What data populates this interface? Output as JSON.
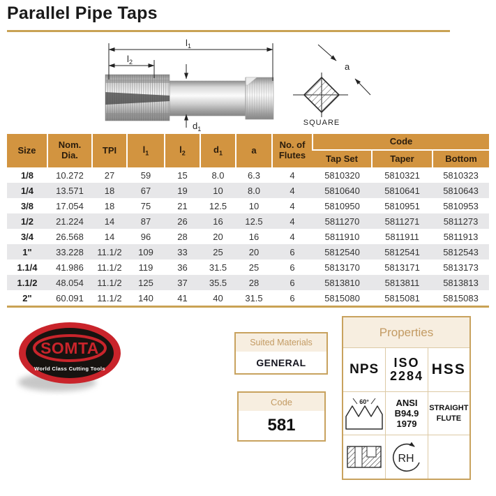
{
  "title": "Parallel Pipe Taps",
  "diagram": {
    "l1_base": "l",
    "l1_sub": "1",
    "l2_base": "l",
    "l2_sub": "2",
    "d1_base": "d",
    "d1_sub": "1",
    "a_label": "a",
    "square_label": "SQUARE"
  },
  "table": {
    "header": {
      "size": "Size",
      "nom_dia_line1": "Nom.",
      "nom_dia_line2": "Dia.",
      "tpi": "TPI",
      "l1_base": "l",
      "l1_sub": "1",
      "l2_base": "l",
      "l2_sub": "2",
      "d1_base": "d",
      "d1_sub": "1",
      "a": "a",
      "flutes_line1": "No. of",
      "flutes_line2": "Flutes",
      "code": "Code",
      "tap_set": "Tap Set",
      "taper": "Taper",
      "bottom": "Bottom"
    },
    "rows": [
      [
        "1/8",
        "10.272",
        "27",
        "59",
        "15",
        "8.0",
        "6.3",
        "4",
        "5810320",
        "5810321",
        "5810323"
      ],
      [
        "1/4",
        "13.571",
        "18",
        "67",
        "19",
        "10",
        "8.0",
        "4",
        "5810640",
        "5810641",
        "5810643"
      ],
      [
        "3/8",
        "17.054",
        "18",
        "75",
        "21",
        "12.5",
        "10",
        "4",
        "5810950",
        "5810951",
        "5810953"
      ],
      [
        "1/2",
        "21.224",
        "14",
        "87",
        "26",
        "16",
        "12.5",
        "4",
        "5811270",
        "5811271",
        "5811273"
      ],
      [
        "3/4",
        "26.568",
        "14",
        "96",
        "28",
        "20",
        "16",
        "4",
        "5811910",
        "5811911",
        "5811913"
      ],
      [
        "1\"",
        "33.228",
        "11.1/2",
        "109",
        "33",
        "25",
        "20",
        "6",
        "5812540",
        "5812541",
        "5812543"
      ],
      [
        "1.1/4",
        "41.986",
        "11.1/2",
        "119",
        "36",
        "31.5",
        "25",
        "6",
        "5813170",
        "5813171",
        "5813173"
      ],
      [
        "1.1/2",
        "48.054",
        "11.1/2",
        "125",
        "37",
        "35.5",
        "28",
        "6",
        "5813810",
        "5813811",
        "5813813"
      ],
      [
        "2\"",
        "60.091",
        "11.1/2",
        "140",
        "41",
        "40",
        "31.5",
        "6",
        "5815080",
        "5815081",
        "5815083"
      ]
    ]
  },
  "logo": {
    "brand": "SOMTA",
    "tagline": "World Class Cutting Tools"
  },
  "suited_materials": {
    "header": "Suited Materials",
    "value": "GENERAL"
  },
  "code_box": {
    "header": "Code",
    "value": "581"
  },
  "properties": {
    "title": "Properties",
    "nps": "NPS",
    "iso_line1": "ISO",
    "iso_line2": "2284",
    "hss": "HSS",
    "angle": "60°",
    "ansi_line1": "ANSI",
    "ansi_line2": "B94.9",
    "ansi_line3": "1979",
    "flute_line1": "STRAIGHT",
    "flute_line2": "FLUTE",
    "rh": "RH"
  },
  "colors": {
    "accent_gold": "#C9A254",
    "header_orange": "#D29440",
    "stripe_gray": "#E7E7E9",
    "box_border": "#C8A25E",
    "beige": "#F7EEE0",
    "gold_text": "#C39B63",
    "logo_red": "#C9242B",
    "logo_black": "#171310"
  }
}
